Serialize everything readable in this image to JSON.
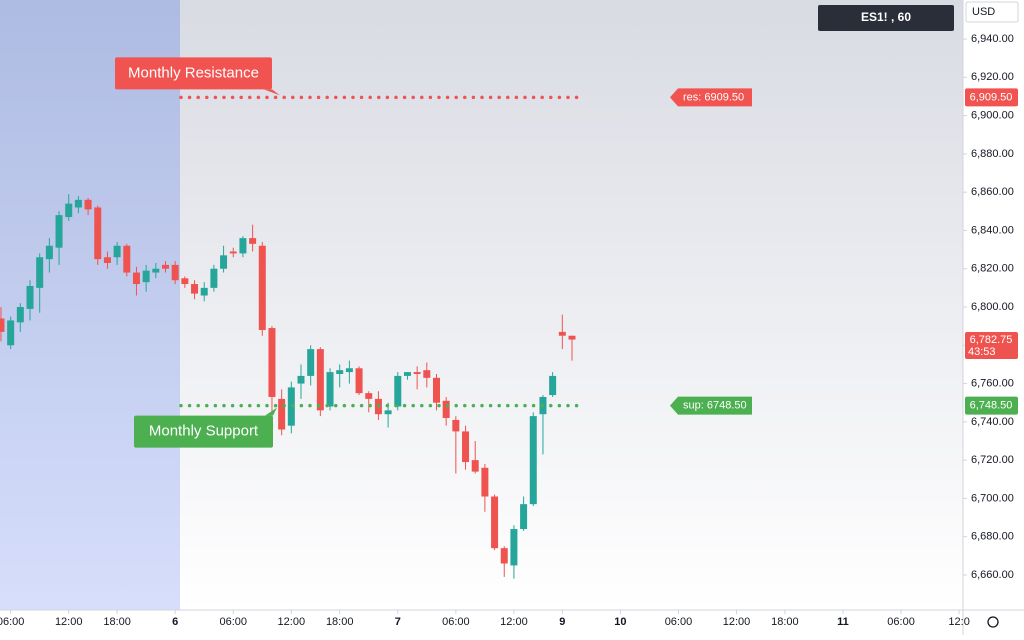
{
  "chart_data": {
    "type": "candlestick",
    "symbol": "ES1! , 60",
    "currency": "USD",
    "up_color": "#26a69a",
    "down_color": "#ef5350",
    "open": [
      6794,
      6780,
      6792,
      6799,
      6810,
      6825,
      6831,
      6847,
      6852,
      6856,
      6852,
      6826,
      6826,
      6832,
      6818,
      6813,
      6818,
      6822,
      6822,
      6815,
      6812,
      6806,
      6810,
      6820,
      6829,
      6828,
      6836,
      6832,
      6789,
      6752,
      6738,
      6760,
      6764,
      6778,
      6748,
      6765,
      6766,
      6768,
      6755,
      6752,
      6744,
      6748,
      6764,
      6766,
      6767,
      6763,
      6751,
      6741,
      6735,
      6720,
      6716,
      6701,
      6674,
      6665,
      6684,
      6697,
      6744,
      6754,
      6787,
      6785
    ],
    "high": [
      6800,
      6795,
      6802,
      6814,
      6828,
      6836,
      6850,
      6859,
      6858,
      6857,
      6853,
      6829,
      6834,
      6833,
      6821,
      6822,
      6823,
      6824,
      6824,
      6816,
      6814,
      6813,
      6822,
      6832,
      6831,
      6837,
      6843,
      6834,
      6790,
      6757,
      6761,
      6770,
      6780,
      6779,
      6768,
      6770,
      6772,
      6769,
      6756,
      6756,
      6750,
      6766,
      6766,
      6769,
      6771,
      6765,
      6753,
      6743,
      6738,
      6730,
      6718,
      6702,
      6675,
      6686,
      6701,
      6745,
      6754,
      6766,
      6796,
      6785
    ],
    "low": [
      6782,
      6778,
      6787,
      6793,
      6797,
      6818,
      6822,
      6845,
      6849,
      6848,
      6822,
      6820,
      6822,
      6816,
      6806,
      6808,
      6815,
      6818,
      6812,
      6810,
      6804,
      6803,
      6808,
      6818,
      6826,
      6826,
      6829,
      6785,
      6745,
      6733,
      6734,
      6752,
      6759,
      6743,
      6746,
      6758,
      6760,
      6754,
      6745,
      6741,
      6737,
      6746,
      6762,
      6757,
      6758,
      6746,
      6738,
      6713,
      6715,
      6713,
      6693,
      6673,
      6659,
      6658,
      6683,
      6696,
      6723,
      6753,
      6778,
      6772
    ],
    "close": [
      6787,
      6793,
      6800,
      6811,
      6826,
      6832,
      6848,
      6854,
      6856,
      6851,
      6825,
      6823,
      6832,
      6818,
      6812,
      6819,
      6820,
      6820,
      6814,
      6812,
      6807,
      6810,
      6820,
      6827,
      6828,
      6836,
      6833,
      6788,
      6753,
      6736,
      6758,
      6764,
      6778,
      6746,
      6766,
      6767,
      6768,
      6755,
      6752,
      6744,
      6746,
      6764,
      6766,
      6765,
      6763,
      6750,
      6742,
      6735,
      6719,
      6714,
      6701,
      6674,
      6666,
      6684,
      6697,
      6743,
      6753,
      6764,
      6785,
      6783
    ],
    "xlim": [
      -0.1,
      99.4
    ],
    "xticks": [
      {
        "value": 1,
        "label": "06:00"
      },
      {
        "value": 7,
        "label": "12:00"
      },
      {
        "value": 12,
        "label": "18:00"
      },
      {
        "value": 18,
        "label": "6"
      },
      {
        "value": 24,
        "label": "06:00"
      },
      {
        "value": 30,
        "label": "12:00"
      },
      {
        "value": 35,
        "label": "18:00"
      },
      {
        "value": 41,
        "label": "7"
      },
      {
        "value": 47,
        "label": "06:00"
      },
      {
        "value": 53,
        "label": "12:00"
      },
      {
        "value": 58,
        "label": "9"
      },
      {
        "value": 64,
        "label": "10"
      },
      {
        "value": 70,
        "label": "06:00"
      },
      {
        "value": 76,
        "label": "12:00"
      },
      {
        "value": 81,
        "label": "18:00"
      },
      {
        "value": 87,
        "label": "11"
      },
      {
        "value": 93,
        "label": "06:00"
      },
      {
        "value": 99,
        "label": "12:0"
      }
    ],
    "ylim": [
      6641.7,
      6960.4
    ],
    "yticks": [
      {
        "value": 6660,
        "label": "6,660.00"
      },
      {
        "value": 6680,
        "label": "6,680.00"
      },
      {
        "value": 6700,
        "label": "6,700.00"
      },
      {
        "value": 6720,
        "label": "6,720.00"
      },
      {
        "value": 6740,
        "label": "6,740.00"
      },
      {
        "value": 6760,
        "label": "6,760.00"
      },
      {
        "value": 6780,
        "label": "6,780.00"
      },
      {
        "value": 6800,
        "label": "6,800.00"
      },
      {
        "value": 6820,
        "label": "6,820.00"
      },
      {
        "value": 6840,
        "label": "6,840.00"
      },
      {
        "value": 6860,
        "label": "6,860.00"
      },
      {
        "value": 6880,
        "label": "6,880.00"
      },
      {
        "value": 6900,
        "label": "6,900.00"
      },
      {
        "value": 6920,
        "label": "6,920.00"
      },
      {
        "value": 6940,
        "label": "6,940.00"
      }
    ],
    "levels": [
      {
        "name": "Monthly Resistance",
        "value": 6909.5,
        "value_label": "res: 6909.50",
        "axis_label": "6,909.50",
        "color": "#f05350"
      },
      {
        "name": "Monthly Support",
        "value": 6748.5,
        "value_label": "sup: 6748.50",
        "axis_label": "6,748.50",
        "color": "#4caf50"
      }
    ],
    "last_price": {
      "value": 6782.75,
      "label": "6,782.75",
      "countdown": "43:53"
    }
  }
}
